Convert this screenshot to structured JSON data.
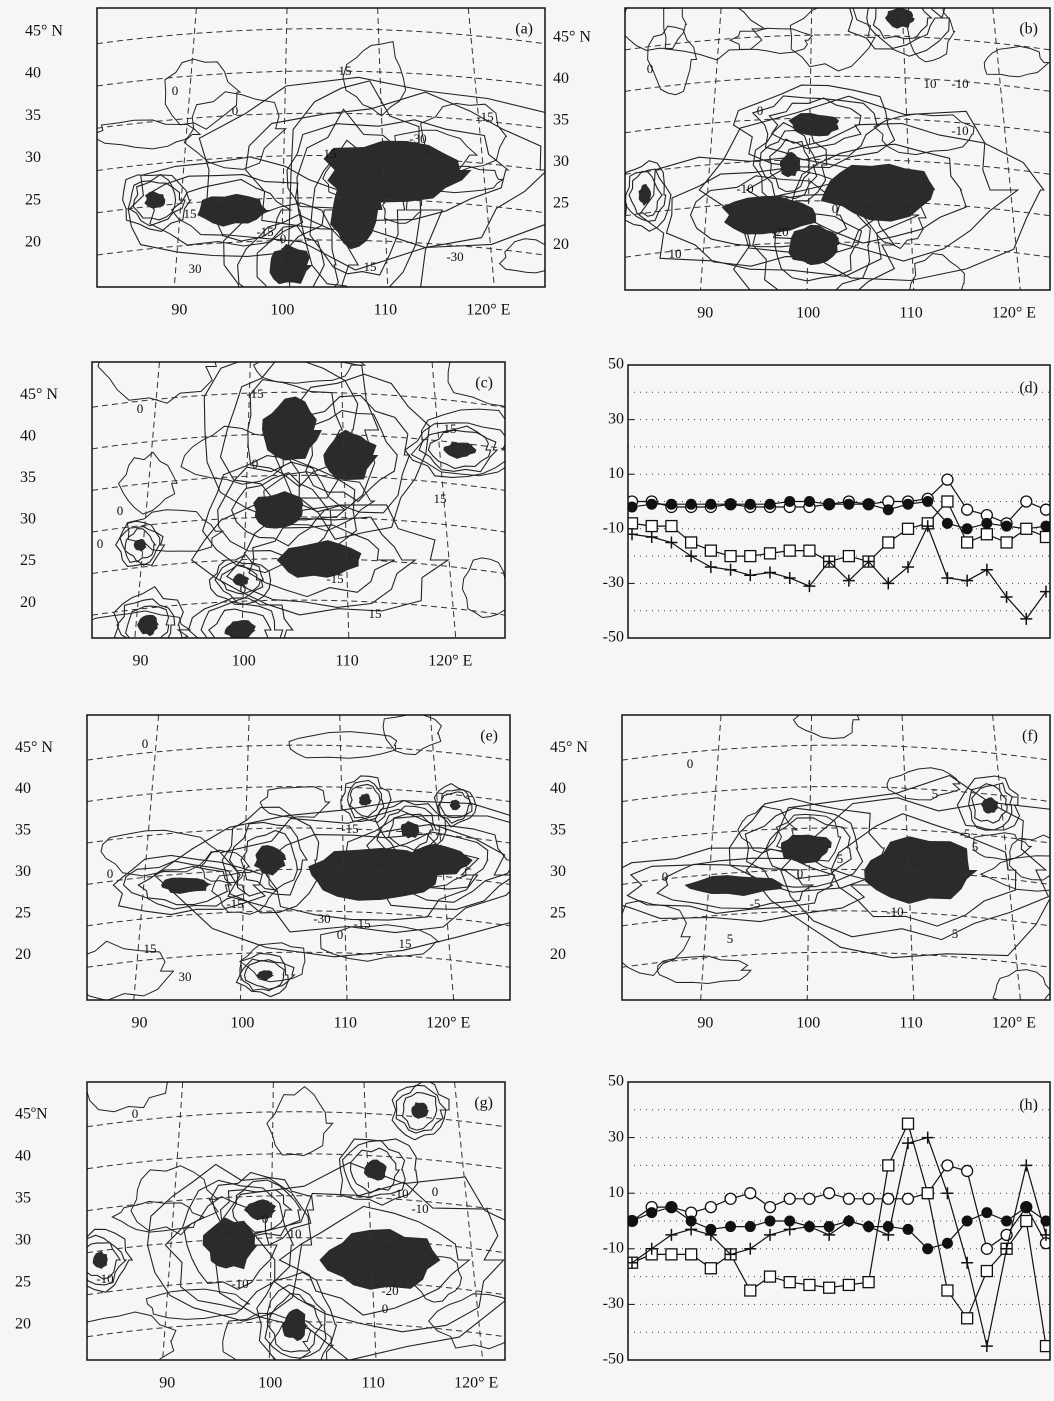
{
  "chart_data": [
    {
      "type": "map",
      "label": "(a)",
      "xlim": [
        82,
        125.5
      ],
      "ylim": [
        14.8,
        47.8
      ],
      "xticks": [
        90,
        100,
        110,
        {
          "value": 120,
          "label": "120° E"
        }
      ],
      "yticks": [
        {
          "value": 45,
          "label": "45° N"
        },
        40,
        35,
        30,
        25,
        20
      ],
      "contour_labels": [
        15,
        0,
        0,
        15,
        -30,
        -15,
        15,
        -15,
        0,
        30,
        15,
        -30
      ]
    },
    {
      "type": "map",
      "label": "(b)",
      "xlim": [
        82.2,
        123.5
      ],
      "ylim": [
        14.6,
        48.6
      ],
      "xticks": [
        90,
        100,
        110,
        {
          "value": 120,
          "label": "120° E"
        }
      ],
      "yticks": [
        {
          "value": 45,
          "label": "45° N"
        },
        40,
        35,
        30,
        25,
        20
      ],
      "contour_labels": [
        0,
        0,
        10,
        -10,
        -10,
        -10,
        -20,
        0,
        10
      ]
    },
    {
      "type": "map",
      "label": "(c)",
      "xlim": [
        85.3,
        125.3
      ],
      "ylim": [
        15.8,
        49
      ],
      "xticks": [
        90,
        100,
        110,
        {
          "value": 120,
          "label": "120° E"
        }
      ],
      "yticks": [
        {
          "value": 45,
          "label": "45° N"
        },
        40,
        35,
        30,
        25,
        20
      ],
      "contour_labels": [
        -15,
        0,
        0,
        15,
        15,
        0,
        0,
        -15,
        0,
        15
      ]
    },
    {
      "type": "line",
      "label": "(d)",
      "ylim": [
        -50,
        50
      ],
      "yticks": [
        50,
        30,
        10,
        -10,
        -30,
        -50
      ],
      "minor_yticks": [
        40,
        20,
        0,
        -20,
        -40
      ],
      "grid": true,
      "series": [
        {
          "marker": "open-circle",
          "color": "#111",
          "values": [
            0,
            0,
            -2,
            -2,
            -2,
            -1,
            -2,
            -2,
            -2,
            -2,
            -1,
            0,
            -1,
            0,
            0,
            1,
            8,
            -3,
            -5,
            -8,
            0,
            -3
          ]
        },
        {
          "marker": "filled-circle",
          "color": "#111",
          "values": [
            -2,
            -1,
            -1,
            -1,
            -1,
            -1,
            -1,
            -1,
            0,
            0,
            -1,
            -1,
            -1,
            -3,
            -1,
            0,
            -8,
            -10,
            -8,
            -9,
            -10,
            -9
          ]
        },
        {
          "marker": "square",
          "color": "#111",
          "values": [
            -8,
            -9,
            -9,
            -15,
            -18,
            -20,
            -20,
            -19,
            -18,
            -18,
            -22,
            -20,
            -22,
            -15,
            -10,
            -8,
            0,
            -15,
            -12,
            -15,
            -10,
            -13
          ]
        },
        {
          "marker": "plus",
          "color": "#111",
          "values": [
            -12,
            -13,
            -15,
            -20,
            -24,
            -25,
            -27,
            -26,
            -28,
            -31,
            -22,
            -29,
            -22,
            -30,
            -24,
            -9,
            -28,
            -29,
            -25,
            -35,
            -43,
            -33
          ]
        }
      ]
    },
    {
      "type": "map",
      "label": "(e)",
      "xlim": [
        84.9,
        126
      ],
      "ylim": [
        14.6,
        49
      ],
      "xticks": [
        90,
        100,
        110,
        {
          "value": 120,
          "label": "120° E"
        }
      ],
      "yticks": [
        {
          "value": 45,
          "label": "45° N"
        },
        40,
        35,
        30,
        25,
        20
      ],
      "contour_labels": [
        0,
        -15,
        0,
        -15,
        -30,
        -15,
        0,
        15,
        15,
        30
      ]
    },
    {
      "type": "map",
      "label": "(f)",
      "xlim": [
        81.9,
        123.5
      ],
      "ylim": [
        14.6,
        49
      ],
      "xticks": [
        90,
        100,
        110,
        {
          "value": 120,
          "label": "120° E"
        }
      ],
      "yticks": [
        {
          "value": 45,
          "label": "45° N"
        },
        40,
        35,
        30,
        25,
        20
      ],
      "contour_labels": [
        0,
        5,
        -5,
        5,
        5,
        0,
        0,
        -5,
        -10,
        5,
        5
      ]
    },
    {
      "type": "map",
      "label": "(g)",
      "xlim": [
        82.2,
        122.8
      ],
      "ylim": [
        15.8,
        48.9
      ],
      "xticks": [
        90,
        100,
        110,
        {
          "value": 120,
          "label": "120° E"
        }
      ],
      "yticks": [
        {
          "value": 45,
          "label": "45ºN"
        },
        40,
        35,
        30,
        25,
        20
      ],
      "contour_labels": [
        0,
        -10,
        0,
        -10,
        0,
        10,
        -10,
        -10,
        -20,
        0
      ]
    },
    {
      "type": "line",
      "label": "(h)",
      "ylim": [
        -50,
        50
      ],
      "yticks": [
        50,
        30,
        10,
        -10,
        -30,
        -50
      ],
      "minor_yticks": [
        40,
        20,
        0,
        -20,
        -40
      ],
      "grid": true,
      "series": [
        {
          "marker": "open-circle",
          "color": "#111",
          "values": [
            0,
            5,
            5,
            3,
            5,
            8,
            10,
            5,
            8,
            8,
            10,
            8,
            8,
            8,
            8,
            10,
            20,
            18,
            -10,
            -5,
            5,
            -8
          ]
        },
        {
          "marker": "filled-circle",
          "color": "#111",
          "values": [
            0,
            3,
            5,
            0,
            -3,
            -2,
            -2,
            0,
            0,
            -2,
            -2,
            0,
            -2,
            -2,
            -3,
            -10,
            -8,
            0,
            3,
            0,
            5,
            0
          ]
        },
        {
          "marker": "square",
          "color": "#111",
          "values": [
            -15,
            -12,
            -12,
            -12,
            -17,
            -12,
            -25,
            -20,
            -22,
            -23,
            -24,
            -23,
            -22,
            20,
            35,
            10,
            -25,
            -35,
            -18,
            -10,
            0,
            -45
          ]
        },
        {
          "marker": "plus",
          "color": "#111",
          "values": [
            -15,
            -10,
            -5,
            -3,
            -5,
            -12,
            -10,
            -5,
            -3,
            -2,
            -5,
            0,
            -2,
            -5,
            28,
            30,
            10,
            -15,
            -45,
            -10,
            20,
            -5
          ]
        }
      ]
    }
  ]
}
